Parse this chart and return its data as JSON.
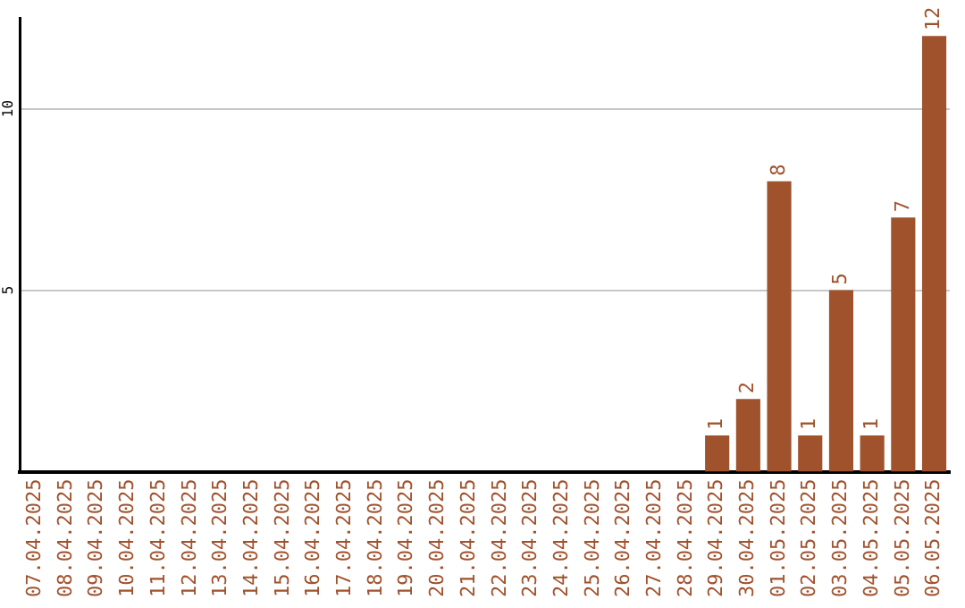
{
  "chart_data": {
    "type": "bar",
    "categories": [
      "07.04.2025",
      "08.04.2025",
      "09.04.2025",
      "10.04.2025",
      "11.04.2025",
      "12.04.2025",
      "13.04.2025",
      "14.04.2025",
      "15.04.2025",
      "16.04.2025",
      "17.04.2025",
      "18.04.2025",
      "19.04.2025",
      "20.04.2025",
      "21.04.2025",
      "22.04.2025",
      "23.04.2025",
      "24.04.2025",
      "25.04.2025",
      "26.04.2025",
      "27.04.2025",
      "28.04.2025",
      "29.04.2025",
      "30.04.2025",
      "01.05.2025",
      "02.05.2025",
      "03.05.2025",
      "04.05.2025",
      "05.05.2025",
      "06.05.2025"
    ],
    "values": [
      0,
      0,
      0,
      0,
      0,
      0,
      0,
      0,
      0,
      0,
      0,
      0,
      0,
      0,
      0,
      0,
      0,
      0,
      0,
      0,
      0,
      0,
      1,
      2,
      8,
      1,
      5,
      1,
      7,
      12
    ],
    "value_labels": [
      null,
      null,
      null,
      null,
      null,
      null,
      null,
      null,
      null,
      null,
      null,
      null,
      null,
      null,
      null,
      null,
      null,
      null,
      null,
      null,
      null,
      null,
      "1",
      "2",
      "8",
      "1",
      "5",
      "1",
      "7",
      "12"
    ],
    "color": "#a0522d",
    "ylim": [
      0,
      12.5
    ],
    "yticks": [
      5,
      10
    ],
    "grid": "y",
    "legend": false
  }
}
